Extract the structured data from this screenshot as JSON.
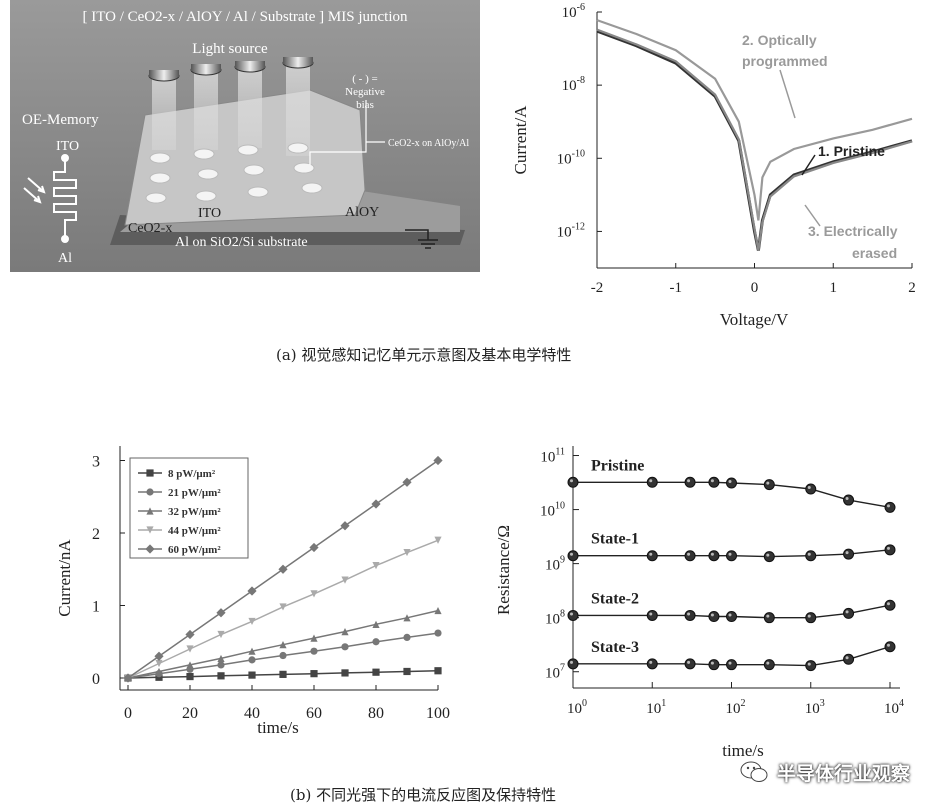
{
  "figure_a": {
    "schematic": {
      "header": "[ ITO / CeO2-x / AlOY / Al / Substrate ] MIS junction",
      "light_source": "Light source",
      "neg_bias": "( - ) =\nNegative\nbias",
      "neg_bias_lines": [
        "( - ) =",
        "Negative",
        "bias"
      ],
      "ceo_label": "CeO2-x on AlOy/Al",
      "oe_memory": "OE-Memory",
      "ito_side": "ITO",
      "al_side": "Al",
      "ceo2x": "CeO2-x",
      "ito_center": "ITO",
      "aloy": "AlOY",
      "substrate": "Al on SiO2/Si substrate"
    },
    "caption": "(a) 视觉感知记忆单元示意图及基本电学特性"
  },
  "figure_b": {
    "caption": "(b) 不同光强下的电流反应图及保持特性"
  },
  "watermark": "半导体行业观察",
  "chart_data": [
    {
      "type": "line",
      "xlabel": "Voltage/V",
      "ylabel": "Current/A",
      "log_y": true,
      "xlim": [
        -2,
        2
      ],
      "ylim": [
        1e-13,
        1e-06
      ],
      "x_ticks": [
        "-2",
        "-1",
        "0",
        "1",
        "2"
      ],
      "y_ticks": [
        "10-6",
        "10-8",
        "10-10",
        "10-12"
      ],
      "grid": false,
      "series": [
        {
          "name": "1. Pristine",
          "color": "#333333",
          "x": [
            -2,
            -1.5,
            -1,
            -0.5,
            -0.2,
            0,
            0.05,
            0.1,
            0.2,
            0.5,
            1,
            1.5,
            2
          ],
          "y": [
            3e-07,
            1.2e-07,
            4e-08,
            5e-09,
            3e-10,
            1e-12,
            3e-13,
            2e-12,
            1e-11,
            3.5e-11,
            8e-11,
            1.5e-10,
            3e-10
          ]
        },
        {
          "name": "2. Optically programmed",
          "color": "#999999",
          "x": [
            -2,
            -1.5,
            -1,
            -0.5,
            -0.2,
            0,
            0.05,
            0.1,
            0.2,
            0.5,
            1,
            1.5,
            2
          ],
          "y": [
            6e-07,
            2.5e-07,
            9e-08,
            1.5e-08,
            1e-09,
            1e-11,
            2e-12,
            3e-11,
            8e-11,
            1.8e-10,
            3.5e-10,
            6e-10,
            1.2e-09
          ]
        },
        {
          "name": "3. Electrically erased",
          "color": "#888888",
          "x": [
            -2,
            -1.5,
            -1,
            -0.5,
            -0.2,
            0,
            0.05,
            0.1,
            0.2,
            0.5,
            1,
            1.5,
            2
          ],
          "y": [
            3.3e-07,
            1.3e-07,
            4.5e-08,
            5.5e-09,
            3.3e-10,
            1.2e-12,
            3e-13,
            1.8e-12,
            9e-12,
            3.2e-11,
            7.5e-11,
            1.4e-10,
            2.9e-10
          ]
        }
      ]
    },
    {
      "type": "scatter",
      "xlabel": "time/s",
      "ylabel": "Current/nA",
      "xlim": [
        0,
        100
      ],
      "ylim": [
        0,
        3.2
      ],
      "x_ticks": [
        "0",
        "20",
        "40",
        "60",
        "80",
        "100"
      ],
      "y_ticks": [
        "0",
        "1",
        "2",
        "3"
      ],
      "legend_position": "top-left",
      "series": [
        {
          "name": "8 pW/μm²",
          "marker": "square",
          "color": "#444444",
          "x": [
            0,
            10,
            20,
            30,
            40,
            50,
            60,
            70,
            80,
            90,
            100
          ],
          "y": [
            0,
            0.01,
            0.02,
            0.03,
            0.04,
            0.05,
            0.06,
            0.07,
            0.08,
            0.09,
            0.1
          ]
        },
        {
          "name": "21 pW/μm²",
          "marker": "circle",
          "color": "#777777",
          "x": [
            0,
            10,
            20,
            30,
            40,
            50,
            60,
            70,
            80,
            90,
            100
          ],
          "y": [
            0,
            0.06,
            0.12,
            0.18,
            0.25,
            0.31,
            0.37,
            0.43,
            0.5,
            0.56,
            0.62
          ]
        },
        {
          "name": "32 pW/μm²",
          "marker": "triangle-up",
          "color": "#777777",
          "x": [
            0,
            10,
            20,
            30,
            40,
            50,
            60,
            70,
            80,
            90,
            100
          ],
          "y": [
            0,
            0.09,
            0.18,
            0.27,
            0.37,
            0.46,
            0.55,
            0.64,
            0.74,
            0.83,
            0.93
          ]
        },
        {
          "name": "44 pW/μm²",
          "marker": "triangle-down",
          "color": "#aaaaaa",
          "x": [
            0,
            10,
            20,
            30,
            40,
            50,
            60,
            70,
            80,
            90,
            100
          ],
          "y": [
            0,
            0.2,
            0.4,
            0.6,
            0.78,
            0.98,
            1.16,
            1.35,
            1.55,
            1.73,
            1.9
          ]
        },
        {
          "name": "60 pW/μm²",
          "marker": "diamond",
          "color": "#777777",
          "x": [
            0,
            10,
            20,
            30,
            40,
            50,
            60,
            70,
            80,
            90,
            100
          ],
          "y": [
            0,
            0.3,
            0.6,
            0.9,
            1.2,
            1.5,
            1.8,
            2.1,
            2.4,
            2.7,
            3.0
          ]
        }
      ]
    },
    {
      "type": "scatter",
      "xlabel": "time/s",
      "ylabel": "Resistance/Ω",
      "log_x": true,
      "log_y": true,
      "xlim": [
        1,
        10000
      ],
      "ylim": [
        5000000.0,
        150000000000.0
      ],
      "x_ticks": [
        "10^0",
        "10^1",
        "10^2",
        "10^3",
        "10^4"
      ],
      "y_ticks": [
        "10^7",
        "10^8",
        "10^9",
        "10^10",
        "10^11"
      ],
      "series": [
        {
          "name": "Pristine",
          "x": [
            1,
            10,
            30,
            60,
            100,
            300,
            1000,
            3000,
            10000
          ],
          "y": [
            32000000000.0,
            32000000000.0,
            32000000000.0,
            32000000000.0,
            31000000000.0,
            29000000000.0,
            24000000000.0,
            15000000000.0,
            11000000000.0
          ]
        },
        {
          "name": "State-1",
          "x": [
            1,
            10,
            30,
            60,
            100,
            300,
            1000,
            3000,
            10000
          ],
          "y": [
            1400000000.0,
            1400000000.0,
            1400000000.0,
            1400000000.0,
            1400000000.0,
            1350000000.0,
            1400000000.0,
            1500000000.0,
            1800000000.0
          ]
        },
        {
          "name": "State-2",
          "x": [
            1,
            10,
            30,
            60,
            100,
            300,
            1000,
            3000,
            10000
          ],
          "y": [
            110000000.0,
            110000000.0,
            110000000.0,
            105000000.0,
            105000000.0,
            100000000.0,
            100000000.0,
            120000000.0,
            170000000.0
          ]
        },
        {
          "name": "State-3",
          "x": [
            1,
            10,
            30,
            60,
            100,
            300,
            1000,
            3000,
            10000
          ],
          "y": [
            14000000.0,
            14000000.0,
            14000000.0,
            13500000.0,
            13500000.0,
            13500000.0,
            13000000.0,
            17000000.0,
            29000000.0
          ]
        }
      ]
    }
  ]
}
